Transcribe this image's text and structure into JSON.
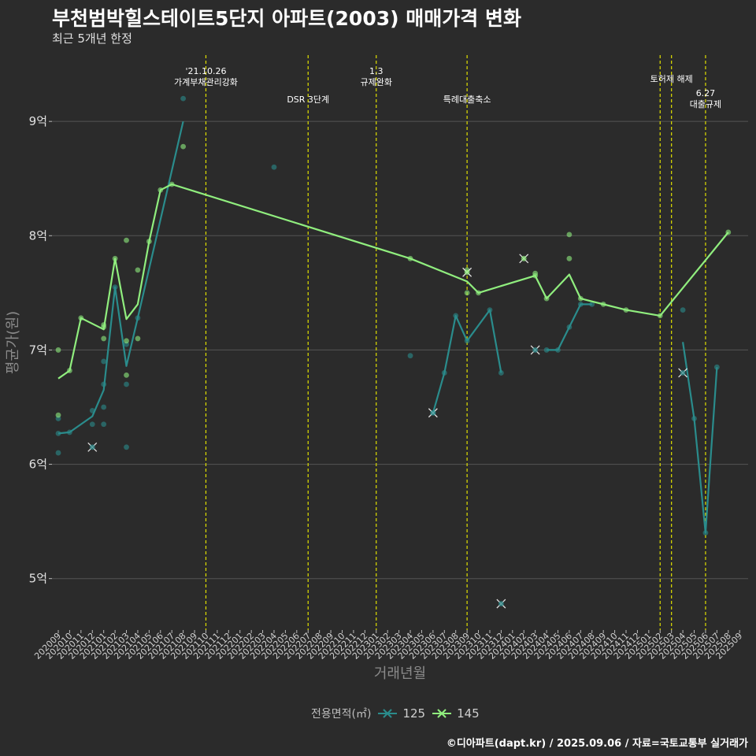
{
  "title": "부천범박힐스테이트5단지 아파트(2003) 매매가격 변화",
  "subtitle": "최근 5개년 한정",
  "caption": "©디아파트(dapt.kr) / 2025.09.06 / 자료=국토교통부 실거래가",
  "chart_data": {
    "type": "line",
    "xlabel": "거래년월",
    "ylabel": "평균가(원)",
    "ylim": [
      4.55,
      9.58
    ],
    "yticks": [
      {
        "value": 5,
        "label": "5억"
      },
      {
        "value": 6,
        "label": "6억"
      },
      {
        "value": 7,
        "label": "7억"
      },
      {
        "value": 8,
        "label": "8억"
      },
      {
        "value": 9,
        "label": "9억"
      }
    ],
    "categories": [
      "202009",
      "202010",
      "202011",
      "202012",
      "202101",
      "202102",
      "202103",
      "202104",
      "202105",
      "202106",
      "202107",
      "202108",
      "202109",
      "202110",
      "202111",
      "202112",
      "202201",
      "202202",
      "202203",
      "202204",
      "202205",
      "202206",
      "202207",
      "202208",
      "202209",
      "202210",
      "202211",
      "202212",
      "202301",
      "202302",
      "202303",
      "202304",
      "202305",
      "202306",
      "202307",
      "202308",
      "202309",
      "202310",
      "202311",
      "202312",
      "202401",
      "202402",
      "202403",
      "202404",
      "202405",
      "202406",
      "202407",
      "202408",
      "202409",
      "202410",
      "202411",
      "202412",
      "202501",
      "202502",
      "202503",
      "202504",
      "202505",
      "202506",
      "202507",
      "202508",
      "202509"
    ],
    "legend_title": "전용면적(㎡)",
    "grid": true,
    "series": [
      {
        "name": "125",
        "color": "#2a8c8c",
        "segments": [
          [
            [
              "202009",
              6.27
            ],
            [
              "202010",
              6.28
            ],
            [
              "202012",
              6.42
            ],
            [
              "202101",
              6.65
            ],
            [
              "202102",
              7.55
            ],
            [
              "202103",
              6.86
            ],
            [
              "202104",
              7.28
            ],
            [
              "202108",
              9.0
            ]
          ],
          [
            [
              "202306",
              6.45
            ],
            [
              "202307",
              6.8
            ],
            [
              "202308",
              7.3
            ],
            [
              "202309",
              7.08
            ],
            [
              "202311",
              7.35
            ],
            [
              "202312",
              6.8
            ]
          ],
          [
            [
              "202404",
              7.0
            ],
            [
              "202405",
              7.0
            ],
            [
              "202406",
              7.2
            ],
            [
              "202407",
              7.4
            ],
            [
              "202408",
              7.4
            ]
          ],
          [
            [
              "202504",
              7.07
            ],
            [
              "202505",
              6.4
            ],
            [
              "202506",
              5.4
            ],
            [
              "202507",
              6.85
            ]
          ]
        ],
        "points": [
          [
            "202009",
            6.1
          ],
          [
            "202009",
            6.27
          ],
          [
            "202009",
            6.4
          ],
          [
            "202010",
            6.28
          ],
          [
            "202012",
            6.35
          ],
          [
            "202012",
            6.47
          ],
          [
            "202101",
            6.35
          ],
          [
            "202101",
            6.5
          ],
          [
            "202101",
            6.7
          ],
          [
            "202101",
            6.9
          ],
          [
            "202102",
            7.55
          ],
          [
            "202103",
            6.15
          ],
          [
            "202103",
            6.7
          ],
          [
            "202103",
            7.05
          ],
          [
            "202104",
            7.28
          ],
          [
            "202108",
            9.2
          ],
          [
            "202204",
            8.6
          ],
          [
            "202304",
            6.95
          ],
          [
            "202306",
            6.45
          ],
          [
            "202307",
            6.8
          ],
          [
            "202308",
            7.3
          ],
          [
            "202309",
            7.08
          ],
          [
            "202311",
            7.35
          ],
          [
            "202312",
            6.8
          ],
          [
            "202404",
            7.0
          ],
          [
            "202405",
            7.0
          ],
          [
            "202406",
            7.2
          ],
          [
            "202407",
            7.4
          ],
          [
            "202408",
            7.4
          ],
          [
            "202504",
            7.35
          ],
          [
            "202505",
            6.4
          ],
          [
            "202506",
            5.4
          ],
          [
            "202507",
            6.85
          ]
        ],
        "cancelled": [
          [
            "202012",
            6.15
          ],
          [
            "202306",
            6.45
          ],
          [
            "202312",
            4.78
          ],
          [
            "202403",
            7.0
          ],
          [
            "202504",
            6.8
          ]
        ]
      },
      {
        "name": "145",
        "color": "#90ee7e",
        "segments": [
          [
            [
              "202009",
              6.75
            ],
            [
              "202010",
              6.82
            ],
            [
              "202011",
              7.28
            ],
            [
              "202101",
              7.18
            ],
            [
              "202102",
              7.8
            ],
            [
              "202103",
              7.27
            ],
            [
              "202104",
              7.4
            ],
            [
              "202105",
              7.95
            ],
            [
              "202106",
              8.4
            ],
            [
              "202107",
              8.45
            ],
            [
              "202304",
              7.8
            ],
            [
              "202309",
              7.6
            ],
            [
              "202310",
              7.5
            ],
            [
              "202403",
              7.65
            ],
            [
              "202404",
              7.45
            ],
            [
              "202406",
              7.66
            ],
            [
              "202407",
              7.45
            ],
            [
              "202411",
              7.35
            ],
            [
              "202502",
              7.3
            ],
            [
              "202508",
              8.03
            ]
          ]
        ],
        "points": [
          [
            "202009",
            6.43
          ],
          [
            "202009",
            7.0
          ],
          [
            "202010",
            6.82
          ],
          [
            "202011",
            7.28
          ],
          [
            "202101",
            7.1
          ],
          [
            "202101",
            7.2
          ],
          [
            "202101",
            7.22
          ],
          [
            "202102",
            7.8
          ],
          [
            "202103",
            6.78
          ],
          [
            "202103",
            7.08
          ],
          [
            "202103",
            7.96
          ],
          [
            "202104",
            7.1
          ],
          [
            "202104",
            7.7
          ],
          [
            "202105",
            7.95
          ],
          [
            "202106",
            8.4
          ],
          [
            "202107",
            8.45
          ],
          [
            "202108",
            8.78
          ],
          [
            "202304",
            7.8
          ],
          [
            "202309",
            7.7
          ],
          [
            "202309",
            7.5
          ],
          [
            "202310",
            7.5
          ],
          [
            "202403",
            7.65
          ],
          [
            "202403",
            7.67
          ],
          [
            "202404",
            7.45
          ],
          [
            "202406",
            7.8
          ],
          [
            "202406",
            8.01
          ],
          [
            "202407",
            7.45
          ],
          [
            "202409",
            7.4
          ],
          [
            "202411",
            7.35
          ],
          [
            "202502",
            7.3
          ],
          [
            "202508",
            8.03
          ]
        ],
        "cancelled": [
          [
            "202309",
            7.68
          ],
          [
            "202402",
            7.8
          ]
        ]
      }
    ],
    "events": [
      {
        "x": "202110",
        "label": "'21.10.26\n가계부채관리강화",
        "row": 1
      },
      {
        "x": "202207",
        "label": "DSR 3단계",
        "row": 3
      },
      {
        "x": "202301",
        "label": "1.3\n규제완화",
        "row": 1
      },
      {
        "x": "202309",
        "label": "특례대출축소",
        "row": 3
      },
      {
        "x": "202502",
        "label": "",
        "row": 0
      },
      {
        "x": "202503",
        "label": "토허제 해제",
        "row": 2
      },
      {
        "x": "202506",
        "label": "6.27\n대출규제",
        "row": 4
      }
    ]
  }
}
